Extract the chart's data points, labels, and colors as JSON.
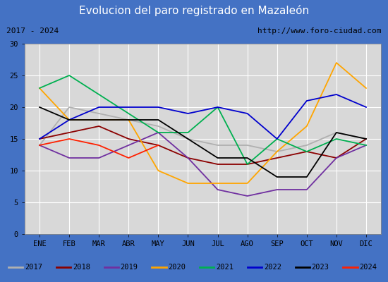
{
  "title": "Evolucion del paro registrado en Mazaleón",
  "subtitle_left": "2017 - 2024",
  "subtitle_right": "http://www.foro-ciudad.com",
  "months": [
    "ENE",
    "FEB",
    "MAR",
    "ABR",
    "MAY",
    "JUN",
    "JUL",
    "AGO",
    "SEP",
    "OCT",
    "NOV",
    "DIC"
  ],
  "series": {
    "2017": [
      14,
      20,
      19,
      18,
      17,
      15,
      14,
      14,
      13,
      14,
      16,
      15
    ],
    "2018": [
      15,
      16,
      17,
      15,
      14,
      12,
      11,
      11,
      12,
      13,
      12,
      15
    ],
    "2019": [
      14,
      12,
      12,
      14,
      16,
      12,
      7,
      6,
      7,
      7,
      12,
      14
    ],
    "2020": [
      23,
      18,
      18,
      18,
      10,
      8,
      8,
      8,
      13,
      17,
      27,
      23
    ],
    "2021": [
      23,
      25,
      22,
      19,
      16,
      16,
      20,
      11,
      15,
      13,
      15,
      14
    ],
    "2022": [
      15,
      18,
      20,
      20,
      20,
      19,
      20,
      19,
      15,
      21,
      22,
      20
    ],
    "2023": [
      20,
      18,
      18,
      18,
      18,
      15,
      12,
      12,
      9,
      9,
      16,
      15
    ],
    "2024": [
      14,
      15,
      14,
      12,
      14,
      null,
      null,
      null,
      null,
      null,
      null,
      null
    ]
  },
  "colors": {
    "2017": "#b0b0b0",
    "2018": "#8b0000",
    "2019": "#7030a0",
    "2020": "#ffa500",
    "2021": "#00b050",
    "2022": "#0000cd",
    "2023": "#000000",
    "2024": "#ff2000"
  },
  "ylim": [
    0,
    30
  ],
  "yticks": [
    0,
    5,
    10,
    15,
    20,
    25,
    30
  ],
  "title_bg": "#4472c4",
  "title_color": "#ffffff",
  "plot_bg": "#d8d8d8",
  "outer_bg": "#4472c4",
  "legend_bg": "#f0f0f0",
  "subtitle_bg": "#e8e8e8"
}
